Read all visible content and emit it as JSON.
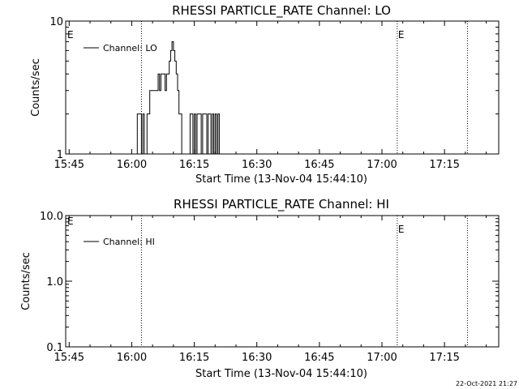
{
  "chart_data": [
    {
      "type": "line",
      "title": "RHESSI PARTICLE_RATE Channel: LO",
      "xlabel": "Start Time (13-Nov-04 15:44:10)",
      "ylabel": "Counts/sec",
      "xlim": [
        "15:44:10",
        "17:28:00"
      ],
      "ylim": [
        1,
        10
      ],
      "yscale": "log",
      "xticks": [
        "15:45",
        "16:00",
        "16:15",
        "16:30",
        "16:45",
        "17:00",
        "17:15"
      ],
      "yticks": [
        "1",
        "10"
      ],
      "legend": {
        "placement": "top-left",
        "entries": [
          "Channel: LO"
        ]
      },
      "grid": false,
      "markers": [
        {
          "time": "16:02:20",
          "label": ""
        },
        {
          "time": "17:03:40",
          "label": "E"
        },
        {
          "time": "17:20:30",
          "label": ""
        }
      ],
      "left_edge_label": "E",
      "series": [
        {
          "name": "Channel: LO",
          "color": "#000000",
          "x": [
            "16:01:00",
            "16:01:20",
            "16:01:40",
            "16:02:00",
            "16:02:20",
            "16:02:40",
            "16:03:00",
            "16:03:20",
            "16:03:40",
            "16:04:00",
            "16:04:20",
            "16:04:40",
            "16:05:00",
            "16:05:20",
            "16:05:40",
            "16:06:00",
            "16:06:20",
            "16:06:40",
            "16:07:00",
            "16:07:20",
            "16:07:40",
            "16:08:00",
            "16:08:20",
            "16:08:40",
            "16:09:00",
            "16:09:20",
            "16:09:40",
            "16:10:00",
            "16:10:20",
            "16:10:40",
            "16:11:00",
            "16:11:20",
            "16:11:40",
            "16:12:00",
            "16:12:20",
            "16:12:40",
            "16:13:00",
            "16:13:20",
            "16:13:40",
            "16:14:00",
            "16:14:20",
            "16:14:40",
            "16:15:00",
            "16:15:20",
            "16:15:40",
            "16:16:00",
            "16:16:20",
            "16:16:40",
            "16:17:00",
            "16:17:20",
            "16:17:40",
            "16:18:00",
            "16:18:20",
            "16:18:40",
            "16:19:00",
            "16:19:20",
            "16:19:40",
            "16:20:00",
            "16:20:20",
            "16:20:40",
            "16:21:00",
            "16:21:20",
            "16:21:40"
          ],
          "values": [
            1,
            2,
            2,
            2,
            1,
            2,
            1,
            1,
            2,
            2,
            3,
            3,
            3,
            3,
            3,
            3,
            4,
            3,
            4,
            4,
            4,
            3,
            4,
            4,
            5,
            6,
            7,
            6,
            5,
            4,
            3,
            2,
            2,
            1,
            1,
            1,
            1,
            1,
            1,
            2,
            2,
            1,
            2,
            1,
            2,
            2,
            2,
            1,
            2,
            2,
            2,
            1,
            2,
            2,
            1,
            2,
            1,
            2,
            1,
            2,
            1,
            1,
            1
          ]
        }
      ]
    },
    {
      "type": "line",
      "title": "RHESSI PARTICLE_RATE Channel: HI",
      "xlabel": "Start Time (13-Nov-04 15:44:10)",
      "ylabel": "Counts/sec",
      "xlim": [
        "15:44:10",
        "17:28:00"
      ],
      "ylim": [
        0.1,
        10
      ],
      "yscale": "log",
      "xticks": [
        "15:45",
        "16:00",
        "16:15",
        "16:30",
        "16:45",
        "17:00",
        "17:15"
      ],
      "yticks": [
        "0.1",
        "1.0",
        "10.0"
      ],
      "legend": {
        "placement": "top-left",
        "entries": [
          "Channel: HI"
        ]
      },
      "grid": false,
      "markers": [
        {
          "time": "16:02:20",
          "label": ""
        },
        {
          "time": "17:03:40",
          "label": "E"
        },
        {
          "time": "17:20:30",
          "label": ""
        }
      ],
      "left_edge_label": "E",
      "series": [
        {
          "name": "Channel: HI",
          "color": "#000000",
          "x": [],
          "values": []
        }
      ]
    }
  ],
  "footer": {
    "timestamp": "22-Oct-2021 21:27"
  }
}
